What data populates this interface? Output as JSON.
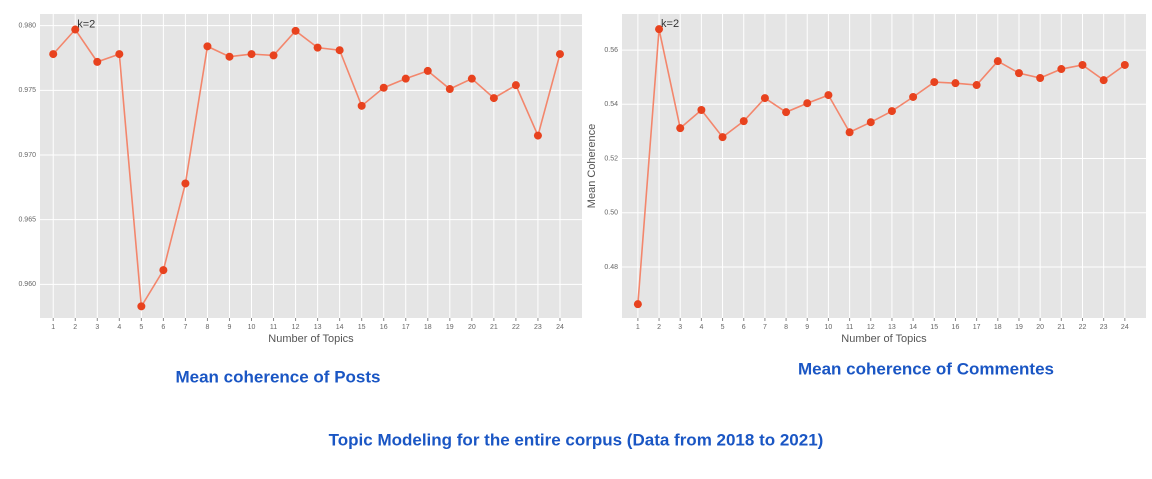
{
  "chart_data": [
    {
      "type": "line",
      "caption": "Mean coherence of Posts",
      "xlabel": "Number of Topics",
      "x": [
        1,
        2,
        3,
        4,
        5,
        6,
        7,
        8,
        9,
        10,
        11,
        12,
        13,
        14,
        15,
        16,
        17,
        18,
        19,
        20,
        21,
        22,
        23,
        24
      ],
      "series": [
        {
          "color": "#f3866c",
          "marker_color": "#e8421e",
          "values": [
            0.9778,
            0.9797,
            0.9772,
            0.9778,
            0.9583,
            0.9611,
            0.9678,
            0.9784,
            0.9776,
            0.9778,
            0.9777,
            0.9796,
            0.9783,
            0.9781,
            0.9738,
            0.9752,
            0.9759,
            0.9765,
            0.9751,
            0.9759,
            0.9744,
            0.9754,
            0.9715,
            0.9778
          ]
        }
      ],
      "annotations": [
        {
          "text": "k=2",
          "x": 2,
          "y": 0.9797
        }
      ],
      "xlim": [
        0.4,
        25.0
      ],
      "xticks": [
        1,
        2,
        3,
        4,
        5,
        6,
        7,
        8,
        9,
        10,
        11,
        12,
        13,
        14,
        15,
        16,
        17,
        18,
        19,
        20,
        21,
        22,
        23,
        24
      ],
      "ylim": [
        0.9574,
        0.9809
      ],
      "yticks": [
        {
          "value": 0.96,
          "label": "0.960"
        },
        0.965,
        {
          "value": 0.97,
          "label": "0.970"
        },
        0.975,
        {
          "value": 0.98,
          "label": "0.980"
        }
      ],
      "grid": true
    },
    {
      "type": "line",
      "caption": "Mean coherence of Commentes",
      "xlabel": "Number of Topics",
      "ylabel": "Mean Coherence",
      "x": [
        1,
        2,
        3,
        4,
        5,
        6,
        7,
        8,
        9,
        10,
        11,
        12,
        13,
        14,
        15,
        16,
        17,
        18,
        19,
        20,
        21,
        22,
        23,
        24
      ],
      "series": [
        {
          "color": "#f3866c",
          "marker_color": "#e8421e",
          "values": [
            0.4663,
            0.5677,
            0.5312,
            0.5379,
            0.5279,
            0.5338,
            0.5423,
            0.5371,
            0.5404,
            0.5434,
            0.5297,
            0.5334,
            0.5375,
            0.5427,
            0.5482,
            0.5478,
            0.5471,
            0.5559,
            0.5515,
            0.5497,
            0.553,
            0.5545,
            0.5489,
            0.5545
          ]
        }
      ],
      "annotations": [
        {
          "text": "k=2",
          "x": 2,
          "y": 0.5677
        }
      ],
      "xlim": [
        0.25,
        25.0
      ],
      "xticks": [
        1,
        2,
        3,
        4,
        5,
        6,
        7,
        8,
        9,
        10,
        11,
        12,
        13,
        14,
        15,
        16,
        17,
        18,
        19,
        20,
        21,
        22,
        23,
        24
      ],
      "ylim": [
        0.4612,
        0.5733
      ],
      "yticks": [
        0.48,
        {
          "value": 0.5,
          "label": "0.50"
        },
        0.52,
        0.54,
        0.56
      ],
      "grid": true
    }
  ],
  "caption": "Topic Modeling for the entire corpus (Data from 2018 to 2021)"
}
